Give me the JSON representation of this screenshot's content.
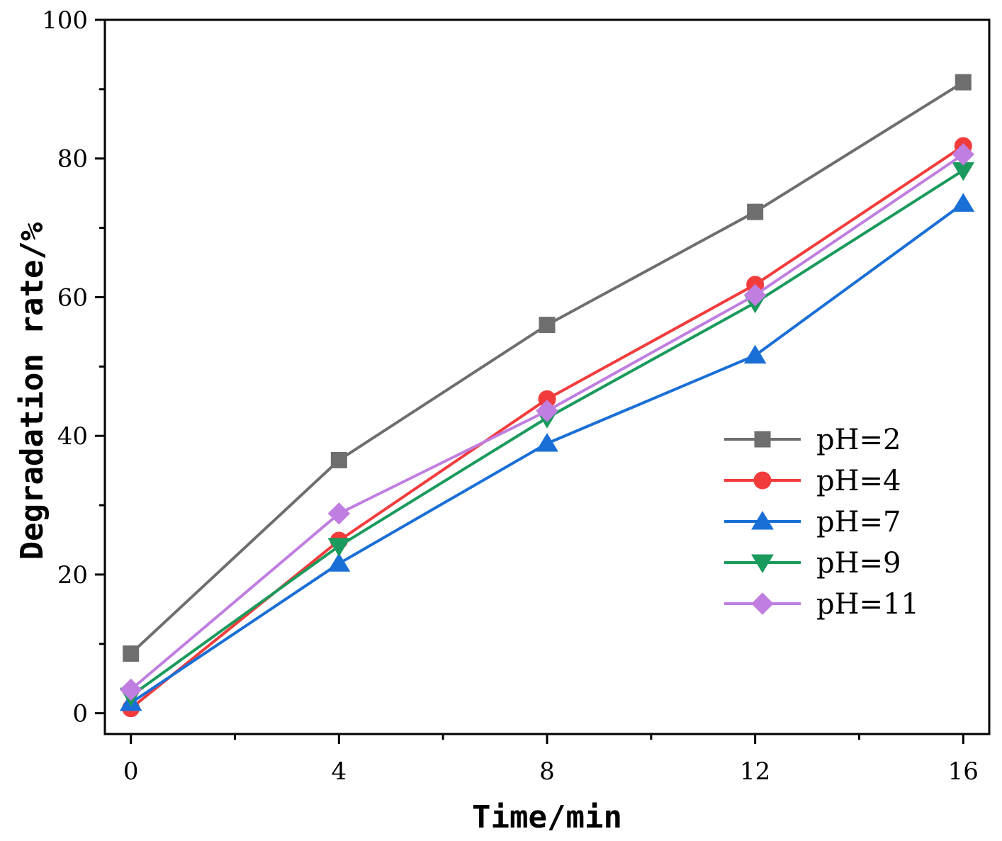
{
  "chart_data": {
    "type": "line",
    "title": "",
    "xlabel": "Time/min",
    "ylabel": "Degradation rate/%",
    "x": [
      0,
      4,
      8,
      12,
      16
    ],
    "xlim": [
      -0.5,
      16.5
    ],
    "ylim": [
      -3,
      100
    ],
    "xticks": [
      0,
      4,
      8,
      12,
      16
    ],
    "xtick_labels": [
      "0",
      "4",
      "8",
      "12",
      "16"
    ],
    "xminor": [
      2,
      6,
      10,
      14
    ],
    "yticks": [
      0,
      20,
      40,
      60,
      80,
      100
    ],
    "ytick_labels": [
      "0",
      "20",
      "40",
      "60",
      "80",
      "100"
    ],
    "yminor": [
      10,
      30,
      50,
      70,
      90
    ],
    "grid": false,
    "legend_position": "right-middle",
    "series": [
      {
        "name": "pH=2",
        "label": "pH=2",
        "marker": "square",
        "color": "#6e6e6e",
        "values": [
          8.6,
          36.5,
          56.0,
          72.3,
          91.0
        ]
      },
      {
        "name": "pH=4",
        "label": "pH=4",
        "marker": "circle",
        "color": "#f23c3c",
        "values": [
          0.7,
          24.9,
          45.3,
          61.8,
          81.8
        ]
      },
      {
        "name": "pH=7",
        "label": "pH=7",
        "marker": "triangle-up",
        "color": "#1a6fd6",
        "values": [
          1.5,
          21.6,
          38.9,
          51.6,
          73.5
        ]
      },
      {
        "name": "pH=9",
        "label": "pH=9",
        "marker": "triangle-down",
        "color": "#1a9a5c",
        "values": [
          2.5,
          24.1,
          42.6,
          59.2,
          78.3
        ]
      },
      {
        "name": "pH=11",
        "label": "pH=11",
        "marker": "diamond",
        "color": "#c07ee0",
        "values": [
          3.4,
          28.8,
          43.6,
          60.3,
          80.6
        ]
      }
    ]
  }
}
